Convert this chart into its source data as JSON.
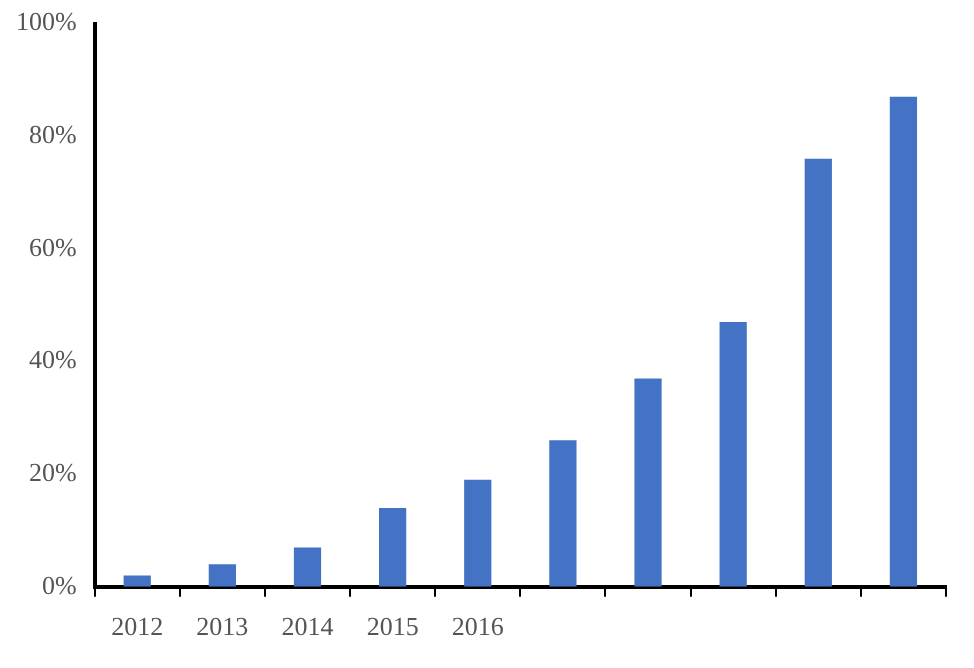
{
  "chart_data": {
    "type": "bar",
    "categories": [
      "2012",
      "2013",
      "2014",
      "2015",
      "2016",
      null,
      null,
      null,
      null,
      null
    ],
    "values": [
      2,
      4,
      7,
      14,
      19,
      26,
      37,
      47,
      76,
      87
    ],
    "color": "#4472c4",
    "ylim": [
      0,
      100
    ],
    "yticks": [
      {
        "value": 0,
        "label": "0%"
      },
      {
        "value": 20,
        "label": "20%"
      },
      {
        "value": 40,
        "label": "40%"
      },
      {
        "value": 60,
        "label": "60%"
      },
      {
        "value": 80,
        "label": "80%"
      },
      {
        "value": 100,
        "label": "100%"
      }
    ],
    "grid": false,
    "legend": false
  }
}
